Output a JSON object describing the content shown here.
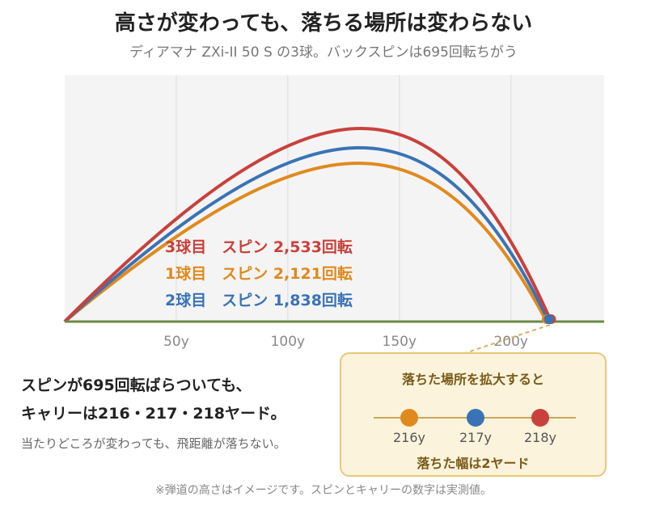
{
  "header": {
    "title": "高さが変わっても、落ちる場所は変わらない",
    "subtitle": "ディアマナ ZXi-II 50 S の3球。バックスピンは695回転ちがう"
  },
  "chart_data": {
    "type": "line",
    "x_ticks": [
      "50y",
      "100y",
      "150y",
      "200y"
    ],
    "series": [
      {
        "name": "3球目　スピン 2,533回転",
        "color": "#c9413b",
        "carry": 218,
        "relative_apex": 1.0
      },
      {
        "name": "1球目　スピン 2,121回転",
        "color": "#e08a1e",
        "carry": 216,
        "relative_apex": 0.82
      },
      {
        "name": "2球目　スピン 1,838回転",
        "color": "#3a73b5",
        "carry": 217,
        "relative_apex": 0.9
      }
    ],
    "xlim": [
      0,
      240
    ],
    "grid": true,
    "legend": "center"
  },
  "notes": {
    "line1": "スピンが695回転ばらついても、",
    "line2": "キャリーは216・217・218ヤード。",
    "line3": "当たりどころが変わっても、飛距離が落ちない。"
  },
  "zoom": {
    "title": "落ちた場所を拡大すると",
    "bottom": "落ちた幅は2ヤード",
    "points": [
      {
        "label": "216y",
        "color": "#e08a1e"
      },
      {
        "label": "217y",
        "color": "#3a73b5"
      },
      {
        "label": "218y",
        "color": "#c9413b"
      }
    ]
  },
  "footnote": "※弾道の高さはイメージです。スピンとキャリーの数字は実測値。",
  "colors": {
    "ground": "#6b8a45",
    "plot_bg": "#f4f4f5",
    "grid": "#dcdcdc",
    "tick_text": "#888888"
  }
}
